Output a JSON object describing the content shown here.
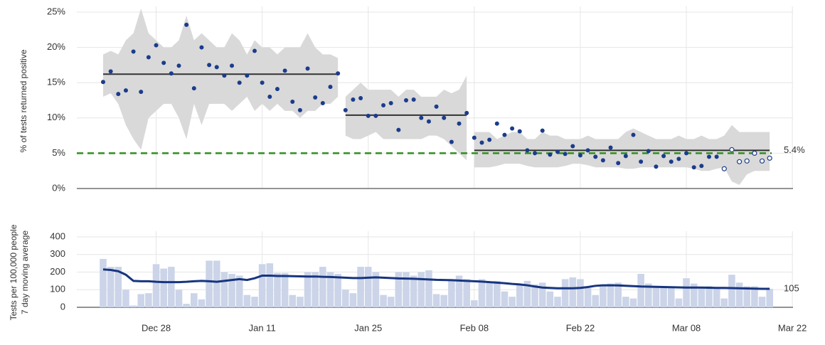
{
  "chart_data": [
    {
      "type": "scatter",
      "y_label": "% of tests returned positive",
      "categories": [
        "Dec 21",
        "Dec 22",
        "Dec 23",
        "Dec 24",
        "Dec 25",
        "Dec 26",
        "Dec 27",
        "Dec 28",
        "Dec 29",
        "Dec 30",
        "Dec 31",
        "Jan 01",
        "Jan 02",
        "Jan 03",
        "Jan 04",
        "Jan 05",
        "Jan 06",
        "Jan 07",
        "Jan 08",
        "Jan 09",
        "Jan 10",
        "Jan 11",
        "Jan 12",
        "Jan 13",
        "Jan 14",
        "Jan 15",
        "Jan 16",
        "Jan 17",
        "Jan 18",
        "Jan 19",
        "Jan 20",
        "Jan 21",
        "Jan 22",
        "Jan 23",
        "Jan 24",
        "Jan 25",
        "Jan 26",
        "Jan 27",
        "Jan 28",
        "Jan 29",
        "Jan 30",
        "Jan 31",
        "Feb 01",
        "Feb 02",
        "Feb 03",
        "Feb 04",
        "Feb 05",
        "Feb 06",
        "Feb 07",
        "Feb 08",
        "Feb 09",
        "Feb 10",
        "Feb 11",
        "Feb 12",
        "Feb 13",
        "Feb 14",
        "Feb 15",
        "Feb 16",
        "Feb 17",
        "Feb 18",
        "Feb 19",
        "Feb 20",
        "Feb 21",
        "Feb 22",
        "Feb 23",
        "Feb 24",
        "Feb 25",
        "Feb 26",
        "Feb 27",
        "Feb 28",
        "Mar 01",
        "Mar 02",
        "Mar 03",
        "Mar 04",
        "Mar 05",
        "Mar 06",
        "Mar 07",
        "Mar 08",
        "Mar 09",
        "Mar 10",
        "Mar 11",
        "Mar 12",
        "Mar 13",
        "Mar 14",
        "Mar 15",
        "Mar 16",
        "Mar 17",
        "Mar 18",
        "Mar 19",
        "Mar 20",
        "Mar 21",
        "Mar 22"
      ],
      "values": [
        15.1,
        16.6,
        13.4,
        13.9,
        19.4,
        13.7,
        18.6,
        20.3,
        17.8,
        16.3,
        17.4,
        23.2,
        14.2,
        20.0,
        17.5,
        17.2,
        16.0,
        17.4,
        15.0,
        16.0,
        19.5,
        15.0,
        13.0,
        14.1,
        16.7,
        12.3,
        11.1,
        17.0,
        12.9,
        12.1,
        14.4,
        16.3,
        11.1,
        12.6,
        12.8,
        10.3,
        10.3,
        11.8,
        12.1,
        8.3,
        12.5,
        12.6,
        10.0,
        9.5,
        11.6,
        10.0,
        6.6,
        9.2,
        10.7,
        7.2,
        6.5,
        6.9,
        9.2,
        7.6,
        8.5,
        8.1,
        5.4,
        5.0,
        8.2,
        4.8,
        5.2,
        4.9,
        6.0,
        4.7,
        5.4,
        4.5,
        4.0,
        5.8,
        3.6,
        4.6,
        7.6,
        3.8,
        5.3,
        3.1,
        4.6,
        3.8,
        4.2,
        5.0,
        3.0,
        3.2,
        4.5,
        4.5,
        2.8,
        5.5,
        3.8,
        3.9,
        5.0,
        3.9,
        4.3,
        null,
        null,
        null
      ],
      "band_upper": [
        19,
        19.5,
        19,
        21,
        22,
        25.5,
        22,
        21,
        20,
        20,
        21,
        24.5,
        21,
        22,
        21,
        20,
        20,
        22,
        21,
        19,
        21,
        20,
        20,
        19,
        20,
        20,
        20,
        22,
        20,
        19,
        19,
        18.5,
        13,
        14,
        15,
        14,
        14,
        14,
        14,
        13,
        14,
        14,
        13,
        13,
        13,
        14,
        13.5,
        14,
        16,
        8,
        8,
        8,
        7,
        7.5,
        8,
        8,
        7,
        7,
        8,
        7.5,
        7.5,
        7,
        7,
        7,
        7.5,
        7,
        7,
        7,
        7,
        8,
        8.5,
        8,
        7.5,
        7,
        7,
        7,
        7.5,
        7,
        7,
        7.5,
        7,
        7,
        7.5,
        9,
        8,
        8,
        8,
        8,
        8,
        null,
        null,
        null
      ],
      "band_lower": [
        13,
        13.5,
        12,
        9,
        7,
        5.5,
        10,
        11,
        12,
        12,
        10,
        7,
        12,
        9,
        12,
        12,
        12,
        11,
        12,
        13,
        11,
        12,
        11,
        12,
        11,
        11,
        10,
        11,
        11,
        12,
        12,
        13,
        7.5,
        7,
        7,
        7.5,
        8,
        7,
        7,
        7,
        7,
        7,
        7,
        7.5,
        7.5,
        7,
        6,
        5,
        4,
        3,
        3,
        3,
        3.2,
        3.5,
        3.5,
        3.5,
        3.2,
        3,
        3,
        3,
        3,
        3.2,
        3.5,
        3.5,
        3.3,
        3,
        3,
        3,
        3,
        2.8,
        2.8,
        3,
        3,
        3,
        3,
        3,
        3,
        3,
        2.8,
        2.5,
        2.5,
        2.8,
        3,
        1,
        0.5,
        2,
        2.5,
        2.5,
        2.5,
        null,
        null,
        null
      ],
      "hollow_from": "Mar 13",
      "segments": {
        "starts": [
          "Dec 21",
          "Jan 22",
          "Feb 08"
        ],
        "ends": [
          "Jan 21",
          "Feb 07",
          "Mar 19"
        ],
        "values": [
          16.2,
          10.4,
          5.4
        ],
        "value_labels": [
          null,
          null,
          "5.4%"
        ]
      },
      "target": 5,
      "colors": {
        "points": "#1b3c8c",
        "band": "#d9d9d9",
        "mean": "#333333",
        "target": "#2f8f1f"
      },
      "ylim": [
        0,
        25
      ],
      "yticks": [
        {
          "value": 0,
          "label": "0%"
        },
        {
          "value": 5,
          "label": "5%"
        },
        {
          "value": 10,
          "label": "10%"
        },
        {
          "value": 15,
          "label": "15%"
        },
        {
          "value": 20,
          "label": "20%"
        },
        {
          "value": 25,
          "label": "25%"
        }
      ],
      "xticks": [
        "Dec 28",
        "Jan 11",
        "Jan 25",
        "Feb 08",
        "Feb 22",
        "Mar 08",
        "Mar 22"
      ],
      "grid": true
    },
    {
      "type": "bar",
      "y_label": [
        "Tests per 100,000 people",
        "7 day moving average"
      ],
      "values": [
        275,
        230,
        230,
        100,
        10,
        75,
        80,
        245,
        220,
        230,
        100,
        20,
        80,
        45,
        265,
        265,
        200,
        190,
        180,
        70,
        60,
        245,
        250,
        195,
        195,
        70,
        60,
        200,
        200,
        230,
        200,
        190,
        100,
        80,
        230,
        230,
        200,
        70,
        60,
        200,
        200,
        180,
        200,
        210,
        75,
        70,
        160,
        180,
        160,
        40,
        160,
        140,
        150,
        90,
        60,
        130,
        150,
        130,
        140,
        90,
        60,
        160,
        170,
        160,
        110,
        70,
        130,
        135,
        140,
        60,
        50,
        190,
        135,
        115,
        120,
        110,
        50,
        165,
        135,
        115,
        120,
        110,
        50,
        185,
        140,
        120,
        120,
        60,
        105,
        null,
        null,
        null
      ],
      "line": {
        "values": [
          215,
          212,
          205,
          185,
          150,
          148,
          148,
          145,
          143,
          143,
          143,
          145,
          148,
          150,
          148,
          145,
          150,
          155,
          160,
          155,
          165,
          180,
          180,
          178,
          178,
          177,
          176,
          175,
          175,
          173,
          172,
          170,
          168,
          166,
          166,
          168,
          170,
          168,
          166,
          164,
          163,
          162,
          160,
          158,
          156,
          155,
          154,
          152,
          150,
          148,
          146,
          143,
          140,
          137,
          133,
          130,
          125,
          118,
          112,
          110,
          108,
          108,
          108,
          110,
          115,
          122,
          125,
          125,
          124,
          122,
          120,
          118,
          117,
          116,
          115,
          114,
          113,
          112,
          112,
          112,
          111,
          110,
          110,
          109,
          108,
          107,
          106,
          105,
          105,
          null,
          null,
          null
        ]
      },
      "colors": {
        "bars": "#cbd4e8",
        "line": "#17357f"
      },
      "ylim": [
        0,
        400
      ],
      "yticks": [
        0,
        100,
        200,
        300,
        400
      ],
      "grid": true
    }
  ]
}
